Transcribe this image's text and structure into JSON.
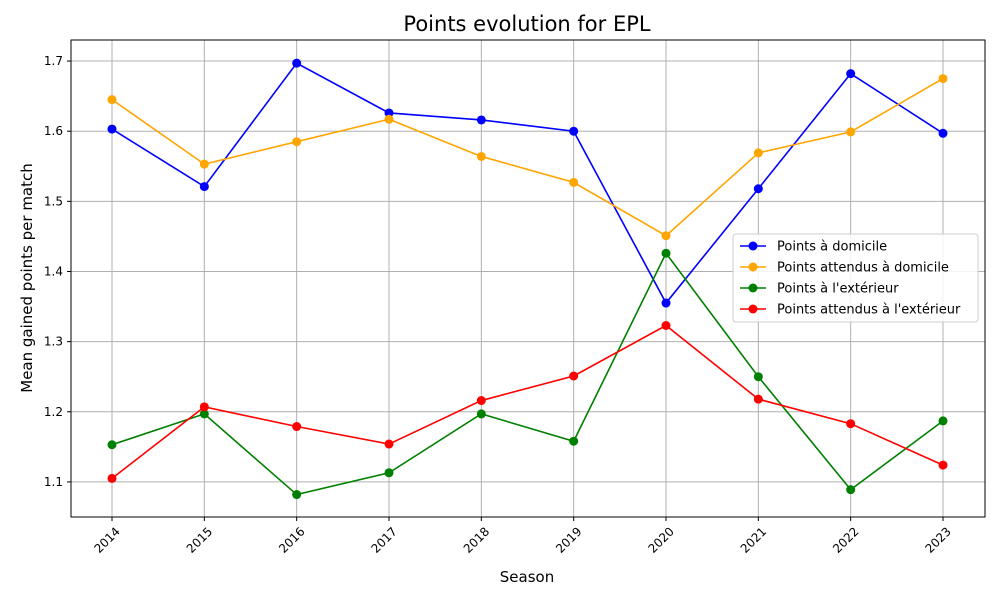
{
  "chart_data": {
    "type": "line",
    "title": "Points evolution for EPL",
    "xlabel": "Season",
    "ylabel": "Mean gained points per match",
    "categories": [
      "2014",
      "2015",
      "2016",
      "2017",
      "2018",
      "2019",
      "2020",
      "2021",
      "2022",
      "2023"
    ],
    "ylim": [
      1.05,
      1.73
    ],
    "yticks": [
      "1.1",
      "1.2",
      "1.3",
      "1.4",
      "1.5",
      "1.6",
      "1.7"
    ],
    "grid": true,
    "legend_position": "center-right",
    "series": [
      {
        "name": "Points à domicile",
        "color": "#0000ff",
        "values": [
          1.603,
          1.521,
          1.697,
          1.626,
          1.616,
          1.6,
          1.355,
          1.518,
          1.682,
          1.597
        ]
      },
      {
        "name": "Points attendus à domicile",
        "color": "#ffa500",
        "values": [
          1.645,
          1.553,
          1.585,
          1.617,
          1.564,
          1.527,
          1.451,
          1.569,
          1.599,
          1.675
        ]
      },
      {
        "name": "Points à l'extérieur",
        "color": "#008000",
        "values": [
          1.153,
          1.197,
          1.082,
          1.113,
          1.197,
          1.158,
          1.426,
          1.25,
          1.089,
          1.187
        ]
      },
      {
        "name": "Points attendus à l'extérieur",
        "color": "#ff0000",
        "values": [
          1.105,
          1.207,
          1.179,
          1.154,
          1.216,
          1.251,
          1.323,
          1.218,
          1.183,
          1.124
        ]
      }
    ]
  }
}
